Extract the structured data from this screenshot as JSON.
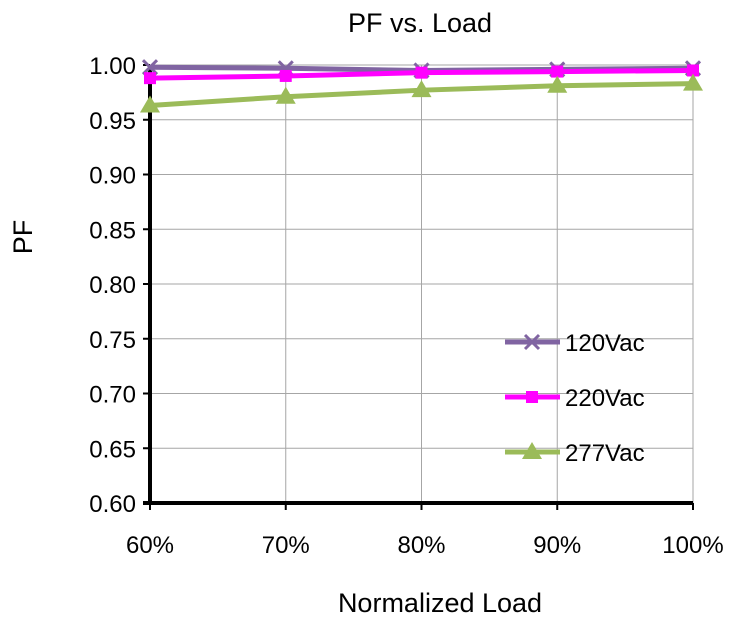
{
  "chart_data": {
    "type": "line",
    "title": "PF vs. Load",
    "xlabel": "Normalized Load",
    "ylabel": "PF",
    "categories": [
      "60%",
      "70%",
      "80%",
      "90%",
      "100%"
    ],
    "ylim": [
      0.6,
      1.0
    ],
    "yticks": [
      "0.60",
      "0.65",
      "0.70",
      "0.75",
      "0.80",
      "0.85",
      "0.90",
      "0.95",
      "1.00"
    ],
    "grid": true,
    "legend_position": "bottom-right",
    "series": [
      {
        "name": "120Vac",
        "color": "#8064a2",
        "marker": "x",
        "values": [
          0.998,
          0.997,
          0.995,
          0.996,
          0.997
        ]
      },
      {
        "name": "220Vac",
        "color": "#ff00ff",
        "marker": "square",
        "values": [
          0.988,
          0.99,
          0.993,
          0.994,
          0.995
        ]
      },
      {
        "name": "277Vac",
        "color": "#9bbb59",
        "marker": "triangle",
        "values": [
          0.963,
          0.971,
          0.977,
          0.981,
          0.983
        ]
      }
    ]
  }
}
